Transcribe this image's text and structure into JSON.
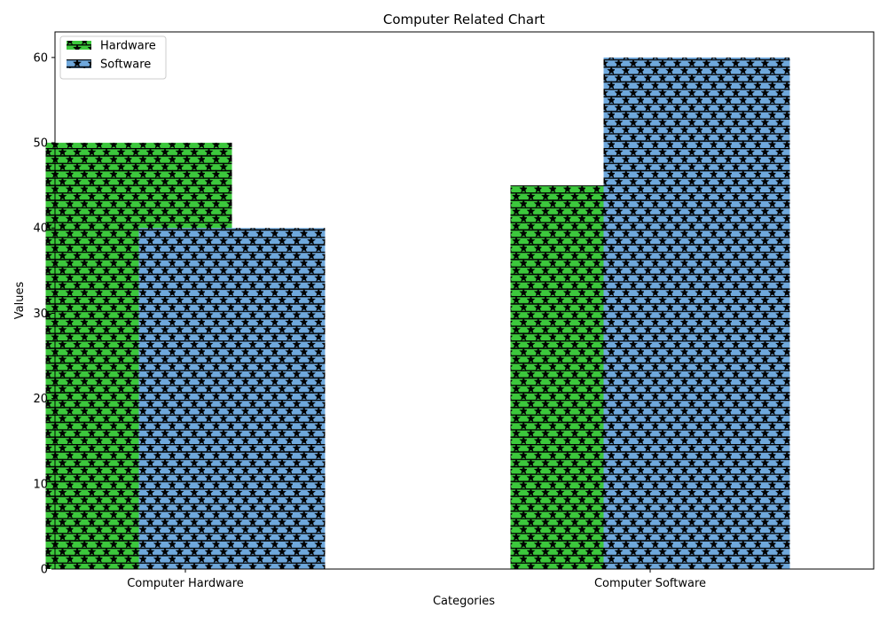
{
  "chart_data": {
    "type": "bar",
    "title": "Computer Related Chart",
    "xlabel": "Categories",
    "ylabel": "Values",
    "categories": [
      "Computer Hardware",
      "Computer Software"
    ],
    "series": [
      {
        "name": "Hardware",
        "values": [
          50,
          45
        ],
        "color": "#3cc83c",
        "pattern": "stars-with-hlines"
      },
      {
        "name": "Software",
        "values": [
          40,
          60
        ],
        "color": "#6fa8dc",
        "pattern": "stars-with-hlines"
      }
    ],
    "ylim": [
      0,
      63
    ],
    "yticks": [
      0,
      10,
      20,
      30,
      40,
      50,
      60
    ],
    "grid": false,
    "legend": "top-left",
    "bar_layout": "overlapping-offset"
  }
}
